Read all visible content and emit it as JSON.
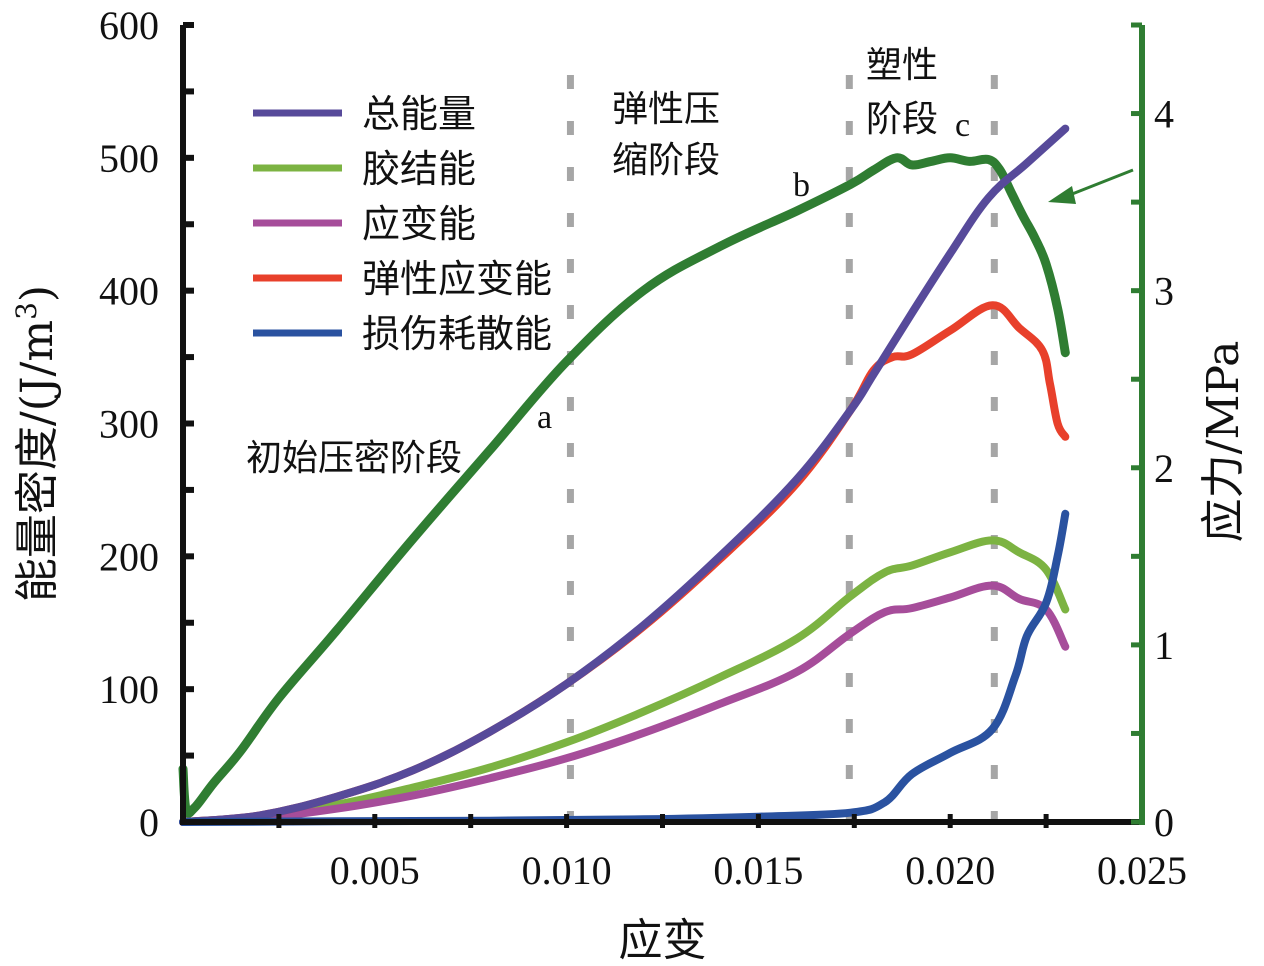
{
  "chart_data": {
    "type": "line",
    "title": "",
    "xlabel": "应变",
    "ylabel_left": "能量密度/(J/m³)",
    "ylabel_left_parts": {
      "main": "能量密度/(J/m",
      "sup": "3",
      "close": ")"
    },
    "ylabel_right": "应力/MPa",
    "xlim": [
      0,
      0.025
    ],
    "ylim_left": [
      0,
      600
    ],
    "ylim_right": [
      0,
      4.5
    ],
    "x_ticks": [
      0.005,
      0.01,
      0.015,
      0.02,
      0.025
    ],
    "x_tick_labels": [
      "0.005",
      "0.010",
      "0.015",
      "0.020",
      "0.025"
    ],
    "x_minor_step": 0.0025,
    "y_left_ticks": [
      0,
      100,
      200,
      300,
      400,
      500,
      600
    ],
    "y_left_tick_labels": [
      "0",
      "100",
      "200",
      "300",
      "400",
      "500",
      "600"
    ],
    "y_left_minor_step": 50,
    "y_right_ticks": [
      0,
      1,
      2,
      3,
      4
    ],
    "y_right_tick_labels": [
      "0",
      "1",
      "2",
      "3",
      "4"
    ],
    "y_right_minor_step": 0.5,
    "grid": false,
    "legend_position": "top-left",
    "stage_boundaries": [
      0.0101,
      0.01737,
      0.02115
    ],
    "series": [
      {
        "name": "总能量",
        "axis": "left",
        "color": "#574a9a",
        "in_legend": true,
        "x": [
          0,
          0.002,
          0.004,
          0.006,
          0.008,
          0.01,
          0.012,
          0.014,
          0.016,
          0.0174,
          0.018,
          0.019,
          0.02,
          0.021,
          0.022,
          0.023
        ],
        "y": [
          0,
          5,
          19,
          39,
          68,
          104,
          148,
          200,
          258,
          310,
          337,
          383,
          428,
          470,
          496,
          522
        ]
      },
      {
        "name": "胶结能",
        "axis": "left",
        "color": "#7cb342",
        "in_legend": true,
        "x": [
          0,
          0.002,
          0.004,
          0.006,
          0.008,
          0.01,
          0.012,
          0.014,
          0.016,
          0.0174,
          0.0183,
          0.019,
          0.02,
          0.0211,
          0.0218,
          0.0225,
          0.023
        ],
        "y": [
          0,
          4,
          13,
          26,
          41,
          60,
          83,
          109,
          138,
          170,
          188,
          193,
          203,
          212,
          203,
          190,
          160
        ]
      },
      {
        "name": "应变能",
        "axis": "left",
        "color": "#a64d9a",
        "in_legend": true,
        "x": [
          0,
          0.002,
          0.004,
          0.006,
          0.008,
          0.01,
          0.012,
          0.014,
          0.016,
          0.0174,
          0.0183,
          0.019,
          0.02,
          0.0211,
          0.0218,
          0.0225,
          0.023
        ],
        "y": [
          0,
          3,
          10,
          20,
          33,
          48,
          67,
          89,
          113,
          142,
          158,
          161,
          169,
          178,
          168,
          160,
          132
        ]
      },
      {
        "name": "弹性应变能",
        "axis": "left",
        "color": "#e8402b",
        "in_legend": true,
        "x": [
          0,
          0.002,
          0.004,
          0.006,
          0.008,
          0.01,
          0.012,
          0.014,
          0.016,
          0.0174,
          0.018,
          0.0185,
          0.019,
          0.02,
          0.0211,
          0.0218,
          0.0224,
          0.0226,
          0.0228,
          0.023
        ],
        "y": [
          0,
          5,
          19,
          39,
          68,
          104,
          147,
          198,
          255,
          310,
          340,
          350,
          352,
          370,
          389,
          372,
          355,
          330,
          300,
          290
        ]
      },
      {
        "name": "损伤耗散能",
        "axis": "left",
        "color": "#2a52a0",
        "in_legend": true,
        "x": [
          0,
          0.004,
          0.008,
          0.012,
          0.015,
          0.0174,
          0.0183,
          0.019,
          0.02,
          0.0211,
          0.0217,
          0.022,
          0.0225,
          0.0228,
          0.023
        ],
        "y": [
          0,
          0.5,
          1,
          2,
          4,
          7,
          15,
          36,
          52,
          70,
          110,
          140,
          165,
          200,
          232
        ]
      },
      {
        "name": "应力",
        "axis": "right",
        "color": "#2f7d32",
        "in_legend": false,
        "x": [
          0,
          8e-05,
          0.0003,
          0.0008,
          0.0015,
          0.0025,
          0.004,
          0.006,
          0.008,
          0.01,
          0.012,
          0.014,
          0.016,
          0.0174,
          0.018,
          0.0186,
          0.019,
          0.0195,
          0.02,
          0.0205,
          0.021,
          0.0213,
          0.0216,
          0.0219,
          0.0222,
          0.0225,
          0.0228,
          0.023
        ],
        "y": [
          0.3,
          0.07,
          0.08,
          0.22,
          0.4,
          0.7,
          1.08,
          1.6,
          2.1,
          2.6,
          3.0,
          3.25,
          3.45,
          3.6,
          3.68,
          3.75,
          3.71,
          3.73,
          3.75,
          3.73,
          3.74,
          3.68,
          3.55,
          3.42,
          3.3,
          3.15,
          2.9,
          2.65
        ]
      }
    ],
    "annotations": {
      "stages": [
        {
          "id": "initial",
          "text": "初始压密阶段"
        },
        {
          "id": "elastic_line1",
          "text": "弹性压"
        },
        {
          "id": "elastic_line2",
          "text": "缩阶段"
        },
        {
          "id": "plastic_line1",
          "text": "塑性"
        },
        {
          "id": "plastic_line2",
          "text": "阶段"
        }
      ],
      "points": [
        {
          "id": "a",
          "text": "a"
        },
        {
          "id": "b",
          "text": "b"
        },
        {
          "id": "c",
          "text": "c"
        }
      ],
      "arrow": {
        "target_series": "应力",
        "meaning": "stress curve uses right axis",
        "color": "#2f7d32"
      }
    }
  }
}
